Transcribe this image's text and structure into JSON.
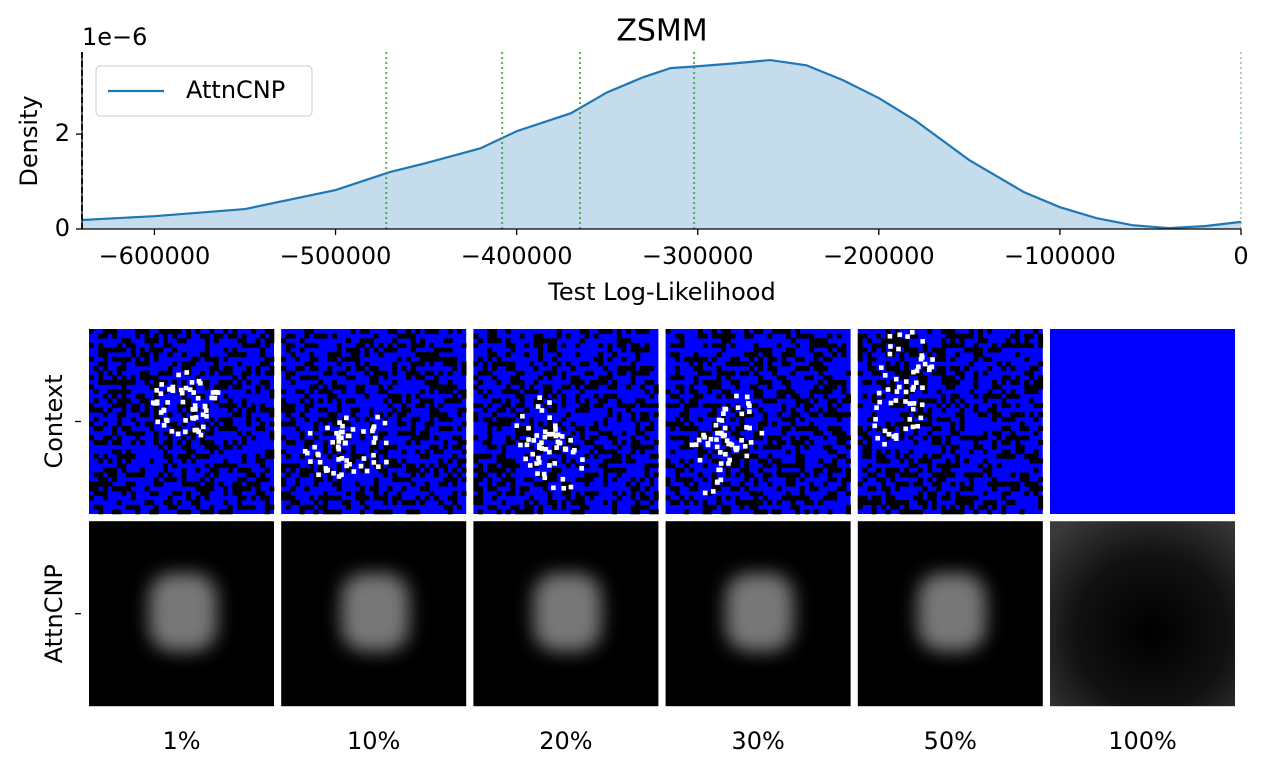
{
  "chart_data": [
    {
      "type": "area",
      "title": "ZSMM",
      "xlabel": "Test Log-Likelihood",
      "ylabel": "Density",
      "offset_text": "1e−6",
      "x": [
        -640000,
        -600000,
        -550000,
        -500000,
        -470000,
        -450000,
        -420000,
        -400000,
        -370000,
        -350000,
        -330000,
        -315000,
        -300000,
        -280000,
        -260000,
        -240000,
        -220000,
        -200000,
        -180000,
        -150000,
        -120000,
        -100000,
        -80000,
        -60000,
        -40000,
        -20000,
        0
      ],
      "series": [
        {
          "name": "AttnCNP",
          "color": "#1f77b4",
          "values": [
            0.19,
            0.27,
            0.42,
            0.82,
            1.2,
            1.39,
            1.7,
            2.06,
            2.44,
            2.88,
            3.2,
            3.39,
            3.43,
            3.49,
            3.56,
            3.45,
            3.14,
            2.76,
            2.29,
            1.45,
            0.78,
            0.46,
            0.23,
            0.08,
            0.02,
            0.06,
            0.15
          ]
        }
      ],
      "vlines": [
        {
          "x": -640000,
          "color": "#000000"
        },
        {
          "x": -472000,
          "color": "#2ca02c"
        },
        {
          "x": -408000,
          "color": "#2ca02c"
        },
        {
          "x": -365000,
          "color": "#2ca02c"
        },
        {
          "x": -302000,
          "color": "#2ca02c"
        },
        {
          "x": 0,
          "color": "#2ca02c"
        }
      ],
      "xlim": [
        -640000,
        0
      ],
      "ylim": [
        0,
        3.73
      ],
      "xticks": [
        {
          "value": -600000,
          "label": "−600000"
        },
        {
          "value": -500000,
          "label": "−500000"
        },
        {
          "value": -400000,
          "label": "−400000"
        },
        {
          "value": -300000,
          "label": "−300000"
        },
        {
          "value": -200000,
          "label": "−200000"
        },
        {
          "value": -100000,
          "label": "−100000"
        },
        0
      ],
      "yticks": [
        0,
        2
      ],
      "legend": "upper left"
    },
    {
      "type": "image_grid",
      "row_labels": [
        "Context",
        "AttnCNP"
      ],
      "col_labels": [
        "1%",
        "10%",
        "20%",
        "30%",
        "50%",
        "100%"
      ]
    }
  ]
}
